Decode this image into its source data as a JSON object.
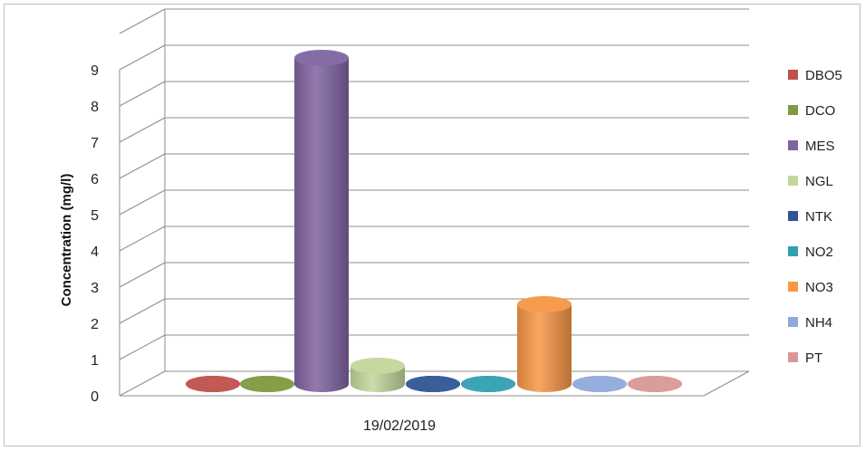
{
  "chart_data": {
    "type": "bar",
    "style": "3d-cylinder",
    "ylabel": "Concentration (mg/l)",
    "xlabel": "",
    "categories": [
      "19/02/2019"
    ],
    "ylim": [
      0,
      9
    ],
    "yticks": [
      "0",
      "1",
      "2",
      "3",
      "4",
      "5",
      "6",
      "7",
      "8",
      "9"
    ],
    "grid": true,
    "legend_position": "right",
    "series": [
      {
        "name": "DBO5",
        "values": [
          0
        ],
        "color": "#c0504d"
      },
      {
        "name": "DCO",
        "values": [
          0
        ],
        "color": "#7f9a3f"
      },
      {
        "name": "MES",
        "values": [
          9
        ],
        "color": "#8064a2"
      },
      {
        "name": "NGL",
        "values": [
          0.5
        ],
        "color": "#c3d69b"
      },
      {
        "name": "NTK",
        "values": [
          0
        ],
        "color": "#2f5597"
      },
      {
        "name": "NO2",
        "values": [
          0
        ],
        "color": "#31a0b1"
      },
      {
        "name": "NO3",
        "values": [
          2.2
        ],
        "color": "#f79646"
      },
      {
        "name": "NH4",
        "values": [
          0
        ],
        "color": "#8eaadb"
      },
      {
        "name": "PT",
        "values": [
          0
        ],
        "color": "#d99795"
      }
    ]
  }
}
